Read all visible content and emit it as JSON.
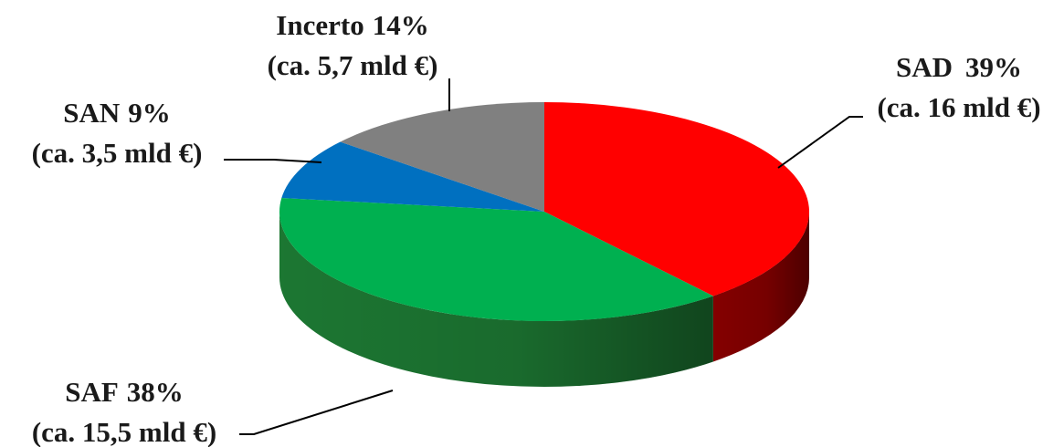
{
  "chart_data": {
    "type": "pie",
    "style": "3d",
    "title": "",
    "slices": [
      {
        "label": "SAD",
        "percent_text": "39%",
        "value": 39,
        "amount": "(ca. 16 mld €)",
        "color": "#ff0000",
        "side_color": "#8b0000"
      },
      {
        "label": "SAF",
        "percent_text": "38%",
        "value": 38,
        "amount": "(ca. 15,5 mld €)",
        "color": "#00b050",
        "side_color": "#1e7d35"
      },
      {
        "label": "SAN",
        "percent_text": "9%",
        "value": 9,
        "amount": "(ca. 3,5 mld €)",
        "color": "#0070c0",
        "side_color": "#004a80"
      },
      {
        "label": "Incerto",
        "percent_text": "14%",
        "value": 14,
        "amount": "(ca. 5,7 mld €)",
        "color": "#808080",
        "side_color": "#4d4d4d"
      }
    ]
  }
}
